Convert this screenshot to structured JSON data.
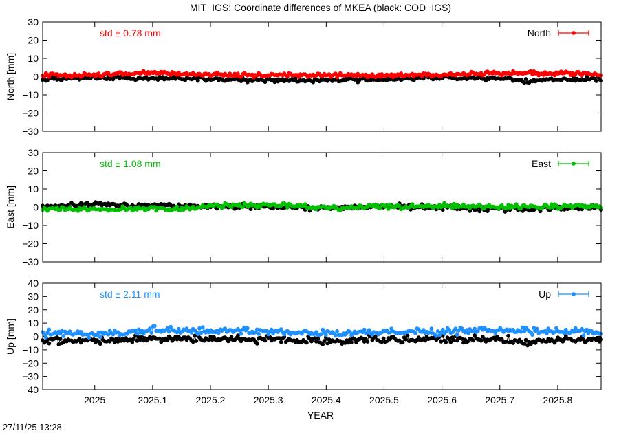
{
  "figure_title": "MIT−IGS: Coordinate differences of MKEA (black: COD−IGS)",
  "xlabel": "YEAR",
  "timestamp": "27/11/25 13:28",
  "colors": {
    "north": "#ff0000",
    "east": "#00c000",
    "up": "#1e90ff",
    "reference": "#000000"
  },
  "chart_data": [
    {
      "type": "scatter",
      "panel": "north",
      "title": "",
      "ylabel": "North [mm]",
      "legend": "North",
      "legend_position": "top-right",
      "std_label": "std ± 0.78 mm",
      "xlim": [
        2024.91,
        2025.875
      ],
      "ylim": [
        -30,
        30
      ],
      "yticks": [
        -30,
        -20,
        -10,
        0,
        10,
        20,
        30
      ],
      "ytick_labels": [
        "−30",
        "−20",
        "−10",
        "0",
        "10",
        "20",
        "30"
      ],
      "xticks": [
        2025,
        2025.1,
        2025.2,
        2025.3,
        2025.4,
        2025.5,
        2025.6,
        2025.7,
        2025.8
      ],
      "xtick_labels": [
        "2025",
        "2025.1",
        "2025.2",
        "2025.3",
        "2025.4",
        "2025.5",
        "2025.6",
        "2025.7",
        "2025.8"
      ],
      "grid": false,
      "series": [
        {
          "name": "North",
          "color": "#ff0000",
          "x_range": [
            2024.91,
            2025.875
          ],
          "trend": [
            [
              2024.91,
              0.8
            ],
            [
              2025.0,
              0.9
            ],
            [
              2025.1,
              2.0
            ],
            [
              2025.2,
              1.2
            ],
            [
              2025.3,
              0.9
            ],
            [
              2025.4,
              0.8
            ],
            [
              2025.5,
              0.5
            ],
            [
              2025.6,
              0.9
            ],
            [
              2025.7,
              1.8
            ],
            [
              2025.8,
              2.0
            ],
            [
              2025.875,
              1.1
            ]
          ],
          "spread": 0.8
        },
        {
          "color": "#000000",
          "x_range": [
            2024.91,
            2025.875
          ],
          "trend": [
            [
              2024.91,
              -1.2
            ],
            [
              2025.0,
              -0.8
            ],
            [
              2025.1,
              -0.8
            ],
            [
              2025.2,
              -1.4
            ],
            [
              2025.3,
              -2.0
            ],
            [
              2025.4,
              -2.0
            ],
            [
              2025.5,
              -1.5
            ],
            [
              2025.6,
              -0.6
            ],
            [
              2025.7,
              -1.0
            ],
            [
              2025.75,
              -2.4
            ],
            [
              2025.8,
              -1.8
            ],
            [
              2025.875,
              -1.2
            ]
          ],
          "spread": 0.8
        }
      ]
    },
    {
      "type": "scatter",
      "panel": "east",
      "title": "",
      "ylabel": "East [mm]",
      "legend": "East",
      "legend_position": "top-right",
      "std_label": "std ± 1.08 mm",
      "xlim": [
        2024.91,
        2025.875
      ],
      "ylim": [
        -30,
        30
      ],
      "yticks": [
        -30,
        -20,
        -10,
        0,
        10,
        20,
        30
      ],
      "ytick_labels": [
        "−30",
        "−20",
        "−10",
        "0",
        "10",
        "20",
        "30"
      ],
      "xticks": [
        2025,
        2025.1,
        2025.2,
        2025.3,
        2025.4,
        2025.5,
        2025.6,
        2025.7,
        2025.8
      ],
      "xtick_labels": [
        "2025",
        "2025.1",
        "2025.2",
        "2025.3",
        "2025.4",
        "2025.5",
        "2025.6",
        "2025.7",
        "2025.8"
      ],
      "grid": false,
      "series": [
        {
          "name": "East",
          "color": "#00c000",
          "x_range": [
            2024.91,
            2025.875
          ],
          "trend": [
            [
              2024.91,
              -0.8
            ],
            [
              2025.0,
              -1.2
            ],
            [
              2025.1,
              -0.4
            ],
            [
              2025.15,
              -1.0
            ],
            [
              2025.2,
              0.8
            ],
            [
              2025.3,
              1.2
            ],
            [
              2025.4,
              -0.2
            ],
            [
              2025.5,
              0.2
            ],
            [
              2025.6,
              0.6
            ],
            [
              2025.7,
              0.4
            ],
            [
              2025.8,
              0.6
            ],
            [
              2025.875,
              0.3
            ]
          ],
          "spread": 1.0
        },
        {
          "color": "#000000",
          "x_range": [
            2024.91,
            2025.875
          ],
          "trend": [
            [
              2024.91,
              0.5
            ],
            [
              2025.0,
              1.8
            ],
            [
              2025.1,
              1.0
            ],
            [
              2025.2,
              0.6
            ],
            [
              2025.3,
              0.4
            ],
            [
              2025.4,
              -0.5
            ],
            [
              2025.5,
              0.6
            ],
            [
              2025.6,
              -0.2
            ],
            [
              2025.7,
              -1.0
            ],
            [
              2025.75,
              -0.8
            ],
            [
              2025.8,
              -0.4
            ],
            [
              2025.875,
              -0.2
            ]
          ],
          "spread": 1.0
        }
      ]
    },
    {
      "type": "scatter",
      "panel": "up",
      "title": "",
      "ylabel": "Up [mm]",
      "legend": "Up",
      "legend_position": "top-right",
      "std_label": "std ± 2.11 mm",
      "xlim": [
        2024.91,
        2025.875
      ],
      "ylim": [
        -40,
        40
      ],
      "yticks": [
        -40,
        -30,
        -20,
        -10,
        0,
        10,
        20,
        30,
        40
      ],
      "ytick_labels": [
        "−40",
        "−30",
        "−20",
        "−10",
        "0",
        "10",
        "20",
        "30",
        "40"
      ],
      "xticks": [
        2025,
        2025.1,
        2025.2,
        2025.3,
        2025.4,
        2025.5,
        2025.6,
        2025.7,
        2025.8
      ],
      "xtick_labels": [
        "2025",
        "2025.1",
        "2025.2",
        "2025.3",
        "2025.4",
        "2025.5",
        "2025.6",
        "2025.7",
        "2025.8"
      ],
      "grid": false,
      "series": [
        {
          "name": "Up",
          "color": "#1e90ff",
          "x_range": [
            2024.91,
            2025.875
          ],
          "trend": [
            [
              2024.91,
              2.5
            ],
            [
              2025.0,
              1.5
            ],
            [
              2025.1,
              4.0
            ],
            [
              2025.2,
              4.5
            ],
            [
              2025.3,
              4.0
            ],
            [
              2025.4,
              2.0
            ],
            [
              2025.5,
              3.0
            ],
            [
              2025.6,
              4.0
            ],
            [
              2025.7,
              4.5
            ],
            [
              2025.8,
              4.0
            ],
            [
              2025.875,
              3.0
            ]
          ],
          "spread": 2.0
        },
        {
          "color": "#000000",
          "x_range": [
            2024.91,
            2025.875
          ],
          "trend": [
            [
              2024.91,
              -3.0
            ],
            [
              2025.0,
              -3.0
            ],
            [
              2025.1,
              -2.0
            ],
            [
              2025.2,
              -1.5
            ],
            [
              2025.3,
              -2.5
            ],
            [
              2025.4,
              -3.5
            ],
            [
              2025.5,
              -2.0
            ],
            [
              2025.6,
              -2.5
            ],
            [
              2025.7,
              -2.0
            ],
            [
              2025.75,
              -5.0
            ],
            [
              2025.8,
              -2.0
            ],
            [
              2025.875,
              -2.5
            ]
          ],
          "spread": 2.0
        }
      ]
    }
  ]
}
